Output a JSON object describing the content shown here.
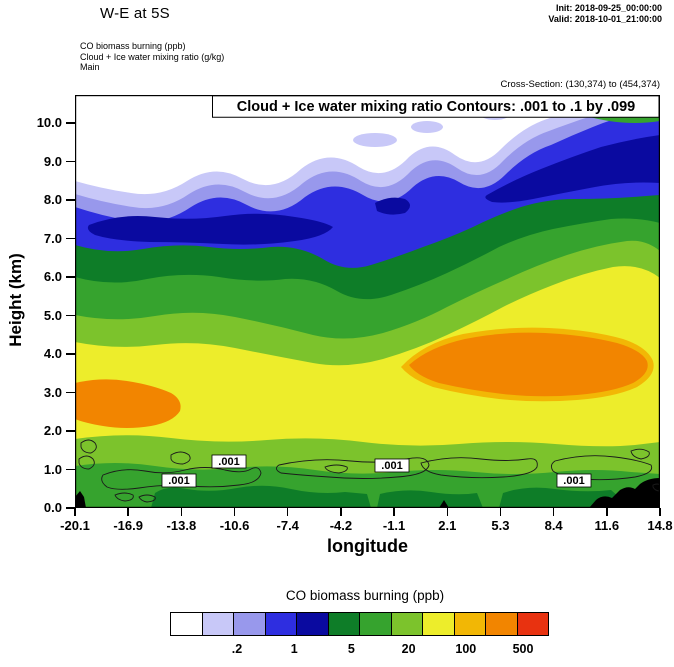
{
  "header": {
    "title": "W-E at 5S",
    "init_label": "Init: 2018-09-25_00:00:00",
    "valid_label": "Valid: 2018-10-01_21:00:00",
    "field_lines": [
      "CO biomass burning   (ppb)",
      "Cloud + Ice water mixing ratio   (g/kg)",
      "Main"
    ],
    "cross_section": "Cross-Section: (130,374) to (454,374)"
  },
  "plot": {
    "annotation": "Cloud + Ice water mixing ratio Contours: .001 to .1 by .099",
    "contour_label": ".001"
  },
  "x_axis": {
    "label": "longitude",
    "ticks": [
      "-20.1",
      "-16.9",
      "-13.8",
      "-10.6",
      "-7.4",
      "-4.2",
      "-1.1",
      "2.1",
      "5.3",
      "8.4",
      "11.6",
      "14.8"
    ]
  },
  "y_axis": {
    "label": "Height (km)",
    "ticks": [
      "0.0",
      "1.0",
      "2.0",
      "3.0",
      "4.0",
      "5.0",
      "6.0",
      "7.0",
      "8.0",
      "9.0",
      "10.0"
    ]
  },
  "colorbar": {
    "title": "CO biomass burning  (ppb)",
    "labels": [
      ".2",
      "1",
      "5",
      "20",
      "100",
      "500"
    ],
    "colors": [
      "#ffffff",
      "#c8c8f8",
      "#9898ec",
      "#2e2ee0",
      "#0a0aa0",
      "#0e7d28",
      "#36a32e",
      "#7cc32c",
      "#eded2b",
      "#f2b705",
      "#f28500",
      "#e83210"
    ]
  },
  "chart_data": {
    "type": "heatmap",
    "subtype": "filled-contour-vertical-cross-section",
    "title": "W-E at 5S",
    "init": "2018-09-25_00:00:00",
    "valid": "2018-10-01_21:00:00",
    "cross_section": "(130,374) to (454,374)",
    "xlabel": "longitude",
    "ylabel": "Height (km)",
    "xlim": [
      -20.1,
      14.8
    ],
    "ylim": [
      0.0,
      10.5
    ],
    "x_ticks": [
      -20.1,
      -16.9,
      -13.8,
      -10.6,
      -7.4,
      -4.2,
      -1.1,
      2.1,
      5.3,
      8.4,
      11.6,
      14.8
    ],
    "y_ticks": [
      0,
      1,
      2,
      3,
      4,
      5,
      6,
      7,
      8,
      9,
      10
    ],
    "grid": false,
    "legend_position": "bottom colorbar",
    "shaded_field": {
      "name": "CO biomass burning",
      "units": "ppb",
      "levels": [
        0.1,
        0.2,
        0.5,
        1,
        2,
        5,
        10,
        20,
        50,
        100,
        200,
        500
      ],
      "colorbar_labels": [
        ".2",
        "1",
        "5",
        "20",
        "100",
        "500"
      ],
      "colors": [
        "#ffffff",
        "#c8c8f8",
        "#9898ec",
        "#2e2ee0",
        "#0a0aa0",
        "#0e7d28",
        "#36a32e",
        "#7cc32c",
        "#eded2b",
        "#f2b705",
        "#f28500",
        "#e83210"
      ]
    },
    "contour_field": {
      "name": "Cloud + Ice water mixing ratio",
      "units": "g/kg",
      "contours_from": 0.001,
      "contours_to": 0.1,
      "contours_by": 0.099,
      "visible_contour_labels": [
        ".001",
        ".001",
        ".001",
        ".001"
      ],
      "label_locations_lon_km": [
        [
          -13.9,
          0.7
        ],
        [
          -10.9,
          1.2
        ],
        [
          -1.2,
          1.1
        ],
        [
          9.7,
          0.7
        ]
      ]
    },
    "co_ppb_grid": {
      "note": "approximate values read from shading; rows ordered top height to bottom",
      "longitudes": [
        -20.1,
        -16.9,
        -13.8,
        -10.6,
        -7.4,
        -4.2,
        -1.1,
        2.1,
        5.3,
        8.4,
        11.6,
        14.8
      ],
      "heights_km": [
        10,
        9,
        8,
        7,
        6,
        5,
        4,
        3,
        2,
        1
      ],
      "values_ppb": [
        [
          0.05,
          0.05,
          0.05,
          0.05,
          0.1,
          0.1,
          0.1,
          0.2,
          0.3,
          0.5,
          2,
          5
        ],
        [
          0.05,
          0.1,
          0.2,
          0.2,
          0.2,
          0.3,
          0.3,
          0.5,
          1,
          2,
          5,
          10
        ],
        [
          0.3,
          0.5,
          1,
          1,
          0.5,
          0.5,
          1,
          1,
          2,
          5,
          10,
          10
        ],
        [
          2,
          2,
          5,
          2,
          2,
          2,
          2,
          2,
          5,
          10,
          10,
          20
        ],
        [
          5,
          10,
          10,
          5,
          5,
          5,
          5,
          5,
          10,
          20,
          20,
          20
        ],
        [
          20,
          20,
          20,
          20,
          10,
          10,
          20,
          20,
          20,
          50,
          50,
          50
        ],
        [
          50,
          50,
          50,
          50,
          50,
          20,
          50,
          100,
          200,
          100,
          100,
          50
        ],
        [
          150,
          150,
          100,
          100,
          50,
          50,
          100,
          200,
          200,
          150,
          100,
          50
        ],
        [
          150,
          100,
          100,
          50,
          50,
          50,
          50,
          100,
          100,
          100,
          50,
          50
        ],
        [
          30,
          30,
          50,
          50,
          20,
          20,
          30,
          50,
          50,
          50,
          50,
          null
        ]
      ]
    },
    "terrain": "black surface terrain mask from ~longitude 12.5 to 14.8 rising to ~0.8 km; minor black marks near -20 and 2.1"
  }
}
